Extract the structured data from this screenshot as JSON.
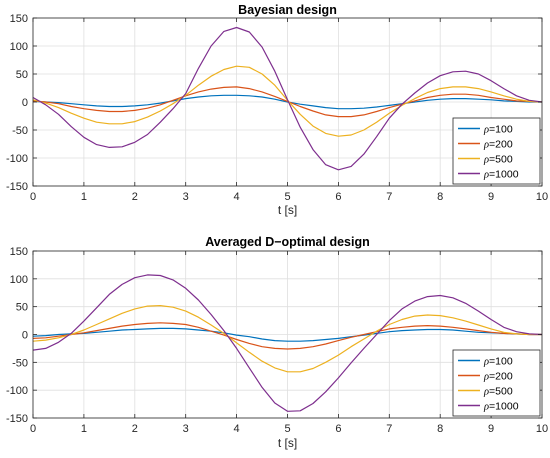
{
  "chart_data": [
    {
      "type": "line",
      "title": "Bayesian design",
      "xlabel": "t [s]",
      "ylabel": "",
      "xlim": [
        0,
        10
      ],
      "ylim": [
        -150,
        150
      ],
      "xticks": [
        0,
        1,
        2,
        3,
        4,
        5,
        6,
        7,
        8,
        9,
        10
      ],
      "yticks": [
        -150,
        -100,
        -50,
        0,
        50,
        100,
        150
      ],
      "grid": true,
      "legend_position": "bottom-right",
      "x": [
        0,
        0.25,
        0.5,
        0.75,
        1,
        1.25,
        1.5,
        1.75,
        2,
        2.25,
        2.5,
        2.75,
        3,
        3.25,
        3.5,
        3.75,
        4,
        4.25,
        4.5,
        4.75,
        5,
        5.25,
        5.5,
        5.75,
        6,
        6.25,
        6.5,
        6.75,
        7,
        7.25,
        7.5,
        7.75,
        8,
        8.25,
        8.5,
        8.75,
        9,
        9.25,
        9.5,
        9.75,
        10
      ],
      "series": [
        {
          "name": "ρ=100",
          "color": "#0072BD",
          "values": [
            1,
            0,
            -1,
            -3,
            -5,
            -7,
            -8,
            -8,
            -7,
            -5,
            -2,
            2,
            6,
            9,
            11,
            12,
            12,
            11,
            9,
            5,
            0,
            -4,
            -7,
            -10,
            -12,
            -12,
            -11,
            -9,
            -6,
            -3,
            0,
            3,
            5,
            6,
            6,
            5,
            4,
            2,
            1,
            0,
            0
          ]
        },
        {
          "name": "ρ=200",
          "color": "#D95319",
          "values": [
            2,
            0,
            -3,
            -8,
            -12,
            -15,
            -17,
            -17,
            -15,
            -11,
            -5,
            3,
            11,
            18,
            23,
            26,
            27,
            24,
            18,
            10,
            1,
            -8,
            -16,
            -23,
            -26,
            -26,
            -23,
            -17,
            -10,
            -4,
            2,
            8,
            12,
            14,
            14,
            12,
            8,
            5,
            2,
            1,
            0
          ]
        },
        {
          "name": "ρ=500",
          "color": "#EDB120",
          "values": [
            4,
            -2,
            -10,
            -20,
            -29,
            -36,
            -39,
            -39,
            -35,
            -27,
            -16,
            -3,
            12,
            30,
            46,
            58,
            64,
            62,
            50,
            30,
            3,
            -22,
            -43,
            -56,
            -61,
            -59,
            -50,
            -36,
            -20,
            -6,
            6,
            17,
            24,
            27,
            27,
            24,
            18,
            11,
            5,
            1,
            0
          ]
        },
        {
          "name": "ρ=1000",
          "color": "#7E2F8E",
          "values": [
            8,
            -5,
            -22,
            -44,
            -63,
            -76,
            -81,
            -80,
            -72,
            -58,
            -36,
            -12,
            15,
            60,
            100,
            126,
            133,
            125,
            98,
            55,
            4,
            -45,
            -85,
            -112,
            -121,
            -115,
            -93,
            -62,
            -29,
            -4,
            16,
            34,
            47,
            54,
            55,
            50,
            38,
            24,
            11,
            3,
            0
          ]
        }
      ]
    },
    {
      "type": "line",
      "title": "Averaged D−optimal design",
      "xlabel": "t [s]",
      "ylabel": "",
      "xlim": [
        0,
        10
      ],
      "ylim": [
        -150,
        150
      ],
      "xticks": [
        0,
        1,
        2,
        3,
        4,
        5,
        6,
        7,
        8,
        9,
        10
      ],
      "yticks": [
        -150,
        -100,
        -50,
        0,
        50,
        100,
        150
      ],
      "grid": true,
      "legend_position": "bottom-right",
      "x": [
        0,
        0.25,
        0.5,
        0.75,
        1,
        1.25,
        1.5,
        1.75,
        2,
        2.25,
        2.5,
        2.75,
        3,
        3.25,
        3.5,
        3.75,
        4,
        4.25,
        4.5,
        4.75,
        5,
        5.25,
        5.5,
        5.75,
        6,
        6.25,
        6.5,
        6.75,
        7,
        7.25,
        7.5,
        7.75,
        8,
        8.25,
        8.5,
        8.75,
        9,
        9.25,
        9.5,
        9.75,
        10
      ],
      "series": [
        {
          "name": "ρ=100",
          "color": "#0072BD",
          "values": [
            -3,
            -2,
            0,
            1,
            2,
            4,
            6,
            8,
            9,
            10,
            11,
            11,
            10,
            8,
            6,
            3,
            -1,
            -4,
            -8,
            -11,
            -12,
            -12,
            -11,
            -9,
            -7,
            -4,
            -1,
            2,
            5,
            7,
            8,
            9,
            9,
            8,
            6,
            4,
            3,
            2,
            1,
            0,
            0
          ]
        },
        {
          "name": "ρ=200",
          "color": "#D95319",
          "values": [
            -7,
            -6,
            -3,
            0,
            3,
            7,
            11,
            15,
            18,
            20,
            21,
            20,
            18,
            13,
            6,
            -1,
            -9,
            -16,
            -22,
            -25,
            -26,
            -25,
            -22,
            -17,
            -11,
            -5,
            0,
            5,
            10,
            13,
            15,
            16,
            15,
            13,
            10,
            7,
            4,
            2,
            1,
            0,
            0
          ]
        },
        {
          "name": "ρ=500",
          "color": "#EDB120",
          "values": [
            -12,
            -10,
            -6,
            0,
            8,
            18,
            28,
            38,
            46,
            51,
            52,
            49,
            42,
            31,
            17,
            2,
            -15,
            -32,
            -48,
            -60,
            -67,
            -67,
            -61,
            -50,
            -37,
            -22,
            -8,
            6,
            18,
            27,
            33,
            35,
            34,
            30,
            24,
            17,
            10,
            4,
            1,
            0,
            0
          ]
        },
        {
          "name": "ρ=1000",
          "color": "#7E2F8E",
          "values": [
            -28,
            -25,
            -14,
            2,
            24,
            48,
            72,
            90,
            102,
            107,
            106,
            98,
            83,
            62,
            36,
            7,
            -25,
            -60,
            -95,
            -123,
            -138,
            -137,
            -124,
            -103,
            -78,
            -51,
            -25,
            0,
            25,
            46,
            60,
            68,
            70,
            66,
            56,
            42,
            27,
            13,
            5,
            1,
            0
          ]
        }
      ]
    }
  ]
}
